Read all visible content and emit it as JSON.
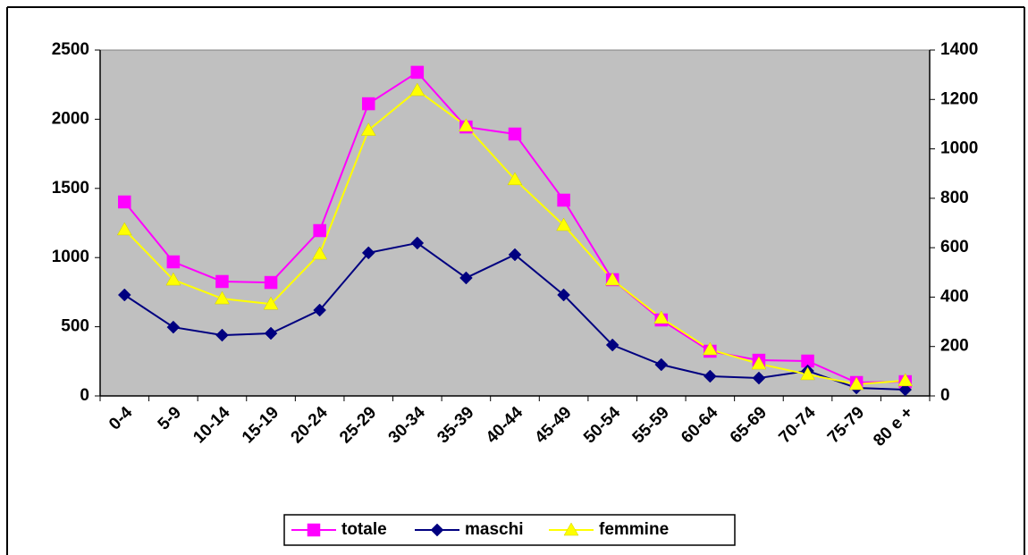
{
  "chart_data": {
    "type": "line",
    "categories": [
      "0-4",
      "5-9",
      "10-14",
      "15-19",
      "20-24",
      "25-29",
      "30-34",
      "35-39",
      "40-44",
      "45-49",
      "50-54",
      "55-59",
      "60-64",
      "65-69",
      "70-74",
      "75-79",
      "80 e +"
    ],
    "series": [
      {
        "name": "totale",
        "color": "#ff00ff",
        "marker": "square",
        "values": [
          1402,
          969,
          827,
          820,
          1195,
          2112,
          2339,
          1944,
          1893,
          1415,
          840,
          549,
          323,
          258,
          252,
          97,
          103
        ]
      },
      {
        "name": "maschi",
        "color": "#000080",
        "marker": "diamond",
        "values": [
          730,
          497,
          439,
          452,
          620,
          1034,
          1105,
          853,
          1021,
          730,
          368,
          226,
          142,
          129,
          181,
          58,
          45
        ]
      },
      {
        "name": "femmine",
        "color": "#ffff00",
        "marker": "triangle",
        "axis": "y2",
        "values": [
          673,
          470,
          394,
          372,
          575,
          1076,
          1237,
          1093,
          876,
          691,
          470,
          315,
          188,
          130,
          87,
          47,
          62
        ]
      }
    ],
    "ylim": [
      0,
      2500
    ],
    "yticks": [
      0,
      500,
      1000,
      1500,
      2000,
      2500
    ],
    "y2lim": [
      0,
      1400
    ],
    "y2ticks": [
      0,
      200,
      400,
      600,
      800,
      1000,
      1200,
      1400
    ],
    "legend": "bottom"
  }
}
